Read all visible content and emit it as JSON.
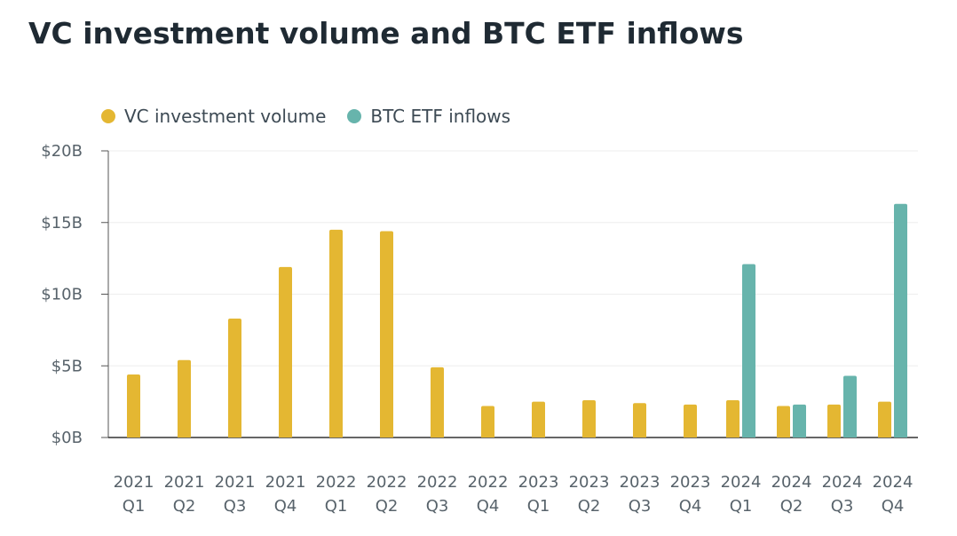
{
  "title": "VC investment volume and BTC ETF inflows",
  "colors": {
    "vc": "#e4b732",
    "etf": "#67b4ac",
    "grid": "#eeeeee",
    "axis": "#555555"
  },
  "chart_data": {
    "type": "bar",
    "title": "VC investment volume and BTC ETF inflows",
    "xlabel": "",
    "ylabel": "",
    "ylim": [
      0,
      20
    ],
    "yticks": [
      0,
      5,
      10,
      15,
      20
    ],
    "ytick_labels": [
      "$0B",
      "$5B",
      "$10B",
      "$15B",
      "$20B"
    ],
    "grid": true,
    "legend_position": "top-left",
    "categories": [
      [
        "2021",
        "Q1"
      ],
      [
        "2021",
        "Q2"
      ],
      [
        "2021",
        "Q3"
      ],
      [
        "2021",
        "Q4"
      ],
      [
        "2022",
        "Q1"
      ],
      [
        "2022",
        "Q2"
      ],
      [
        "2022",
        "Q3"
      ],
      [
        "2022",
        "Q4"
      ],
      [
        "2023",
        "Q1"
      ],
      [
        "2023",
        "Q2"
      ],
      [
        "2023",
        "Q3"
      ],
      [
        "2023",
        "Q4"
      ],
      [
        "2024",
        "Q1"
      ],
      [
        "2024",
        "Q2"
      ],
      [
        "2024",
        "Q3"
      ],
      [
        "2024",
        "Q4"
      ]
    ],
    "series": [
      {
        "name": "VC investment volume",
        "color": "#e4b732",
        "values": [
          4.4,
          5.4,
          8.3,
          11.9,
          14.5,
          14.4,
          4.9,
          2.2,
          2.5,
          2.6,
          2.4,
          2.3,
          2.6,
          2.2,
          2.3,
          2.5
        ]
      },
      {
        "name": "BTC ETF inflows",
        "color": "#67b4ac",
        "values": [
          null,
          null,
          null,
          null,
          null,
          null,
          null,
          null,
          null,
          null,
          null,
          null,
          12.1,
          2.3,
          4.3,
          16.3
        ]
      }
    ]
  }
}
